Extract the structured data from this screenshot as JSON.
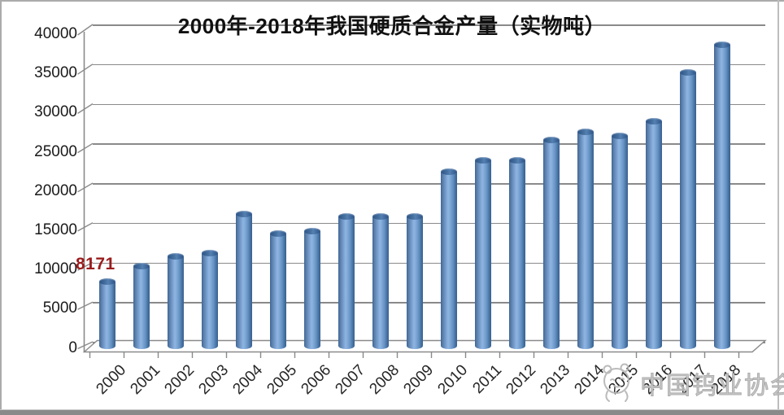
{
  "chart_data": {
    "type": "bar",
    "style": "3d-cylinder",
    "title": "2000年-2018年我国硬质合金产量（实物吨）",
    "categories": [
      "2000",
      "2001",
      "2002",
      "2003",
      "2004",
      "2005",
      "2006",
      "2007",
      "2008",
      "2009",
      "2010",
      "2011",
      "2012",
      "2013",
      "2014",
      "2015",
      "2016",
      "2017",
      "2018"
    ],
    "values": [
      8171,
      10100,
      11400,
      11800,
      16700,
      14200,
      14600,
      16400,
      16400,
      16400,
      22000,
      23500,
      23500,
      26000,
      27000,
      26500,
      28400,
      34500,
      38000
    ],
    "ylim": [
      0,
      40000
    ],
    "ytick_step": 5000,
    "yticks": [
      "0",
      "5000",
      "10000",
      "15000",
      "20000",
      "25000",
      "30000",
      "35000",
      "40000"
    ],
    "grid": true,
    "legend": "none",
    "annotation": {
      "text": "8171",
      "color": "#9a1d1d",
      "target_category": "2000"
    },
    "colors": {
      "bar_edge": "#3a659c",
      "bar_center": "#8fb5e2",
      "bar_cap": "#2c5387",
      "gridline": "#8a8a8a",
      "axis": "#8a8a8a",
      "title_text": "#111111",
      "tick_label": "#1a1a1a"
    }
  },
  "watermark": {
    "text": "中国钨业协会",
    "logo": "association-mascot-icon",
    "color": "#c6c6c6"
  },
  "frame": {
    "bottom_bar_color": "#8a8a8a",
    "border_color": "#ababab"
  }
}
